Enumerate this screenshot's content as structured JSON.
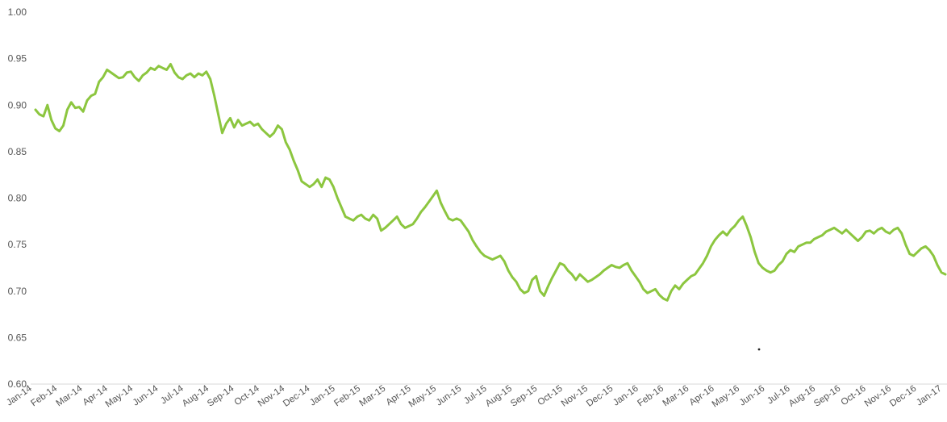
{
  "chart_data": {
    "type": "line",
    "title": "",
    "xlabel": "",
    "ylabel": "",
    "ylim": [
      0.6,
      1.0
    ],
    "y_ticks": [
      "0.60",
      "0.65",
      "0.70",
      "0.75",
      "0.80",
      "0.85",
      "0.90",
      "0.95",
      "1.00"
    ],
    "x_ticks": [
      "Jan-14",
      "Feb-14",
      "Mar-14",
      "Apr-14",
      "May-14",
      "Jun-14",
      "Jul-14",
      "Aug-14",
      "Sep-14",
      "Oct-14",
      "Nov-14",
      "Dec-14",
      "Jan-15",
      "Feb-15",
      "Mar-15",
      "Apr-15",
      "May-15",
      "Jun-15",
      "Jul-15",
      "Aug-15",
      "Sep-15",
      "Oct-15",
      "Nov-15",
      "Dec-15",
      "Jan-16",
      "Feb-16",
      "Mar-16",
      "Apr-16",
      "May-16",
      "Jun-16",
      "Jul-16",
      "Aug-16",
      "Sep-16",
      "Oct-16",
      "Nov-16",
      "Dec-16",
      "Jan-17"
    ],
    "grid": false,
    "line_color": "#8cc63f",
    "series": [
      {
        "values": [
          0.895,
          0.89,
          0.888,
          0.9,
          0.884,
          0.875,
          0.872,
          0.878,
          0.895,
          0.903,
          0.897,
          0.898,
          0.893,
          0.905,
          0.91,
          0.912,
          0.925,
          0.93,
          0.938,
          0.935,
          0.932,
          0.929,
          0.93,
          0.935,
          0.936,
          0.93,
          0.926,
          0.932,
          0.935,
          0.94,
          0.938,
          0.942,
          0.94,
          0.938,
          0.944,
          0.935,
          0.93,
          0.928,
          0.932,
          0.934,
          0.93,
          0.934,
          0.932,
          0.936,
          0.928,
          0.91,
          0.89,
          0.87,
          0.88,
          0.886,
          0.876,
          0.884,
          0.878,
          0.88,
          0.882,
          0.878,
          0.88,
          0.874,
          0.87,
          0.866,
          0.87,
          0.878,
          0.874,
          0.86,
          0.852,
          0.84,
          0.83,
          0.818,
          0.815,
          0.812,
          0.815,
          0.82,
          0.812,
          0.822,
          0.82,
          0.812,
          0.8,
          0.79,
          0.78,
          0.778,
          0.776,
          0.78,
          0.782,
          0.778,
          0.776,
          0.782,
          0.778,
          0.765,
          0.768,
          0.772,
          0.776,
          0.78,
          0.772,
          0.768,
          0.77,
          0.772,
          0.778,
          0.785,
          0.79,
          0.796,
          0.802,
          0.808,
          0.795,
          0.786,
          0.778,
          0.776,
          0.778,
          0.776,
          0.77,
          0.764,
          0.755,
          0.748,
          0.742,
          0.738,
          0.736,
          0.734,
          0.736,
          0.738,
          0.732,
          0.722,
          0.715,
          0.71,
          0.702,
          0.698,
          0.7,
          0.712,
          0.716,
          0.7,
          0.695,
          0.705,
          0.714,
          0.722,
          0.73,
          0.728,
          0.722,
          0.718,
          0.712,
          0.718,
          0.714,
          0.71,
          0.712,
          0.715,
          0.718,
          0.722,
          0.725,
          0.728,
          0.726,
          0.725,
          0.728,
          0.73,
          0.722,
          0.716,
          0.71,
          0.702,
          0.698,
          0.7,
          0.702,
          0.696,
          0.692,
          0.69,
          0.7,
          0.706,
          0.702,
          0.708,
          0.712,
          0.716,
          0.718,
          0.724,
          0.73,
          0.738,
          0.748,
          0.755,
          0.76,
          0.764,
          0.76,
          0.766,
          0.77,
          0.776,
          0.78,
          0.77,
          0.758,
          0.742,
          0.73,
          0.725,
          0.722,
          0.72,
          0.722,
          0.728,
          0.732,
          0.74,
          0.744,
          0.742,
          0.748,
          0.75,
          0.752,
          0.752,
          0.756,
          0.758,
          0.76,
          0.764,
          0.766,
          0.768,
          0.765,
          0.762,
          0.766,
          0.762,
          0.758,
          0.754,
          0.758,
          0.764,
          0.765,
          0.762,
          0.766,
          0.768,
          0.764,
          0.762,
          0.766,
          0.768,
          0.762,
          0.75,
          0.74,
          0.738,
          0.742,
          0.746,
          0.748,
          0.744,
          0.738,
          0.728,
          0.72,
          0.718
        ]
      }
    ],
    "annotations": []
  }
}
